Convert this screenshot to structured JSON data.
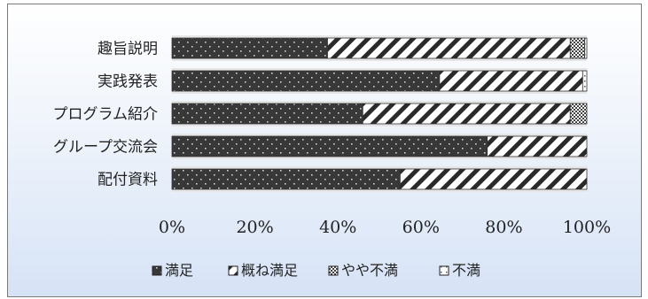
{
  "chart_data": {
    "type": "bar",
    "orientation": "horizontal",
    "stacked": "percent",
    "categories": [
      "趣旨説明",
      "実践発表",
      "プログラム紹介",
      "グループ交流会",
      "配付資料"
    ],
    "series": [
      {
        "name": "満足",
        "values": [
          37.5,
          64.5,
          46,
          76,
          55
        ],
        "pattern": "dark-dotted",
        "color": "#3c3c3c"
      },
      {
        "name": "概ね満足",
        "values": [
          58.5,
          34.5,
          50,
          24,
          45
        ],
        "pattern": "diagonal-stripes",
        "color": "#ffffff"
      },
      {
        "name": "やや不満",
        "values": [
          3.5,
          0,
          4,
          0,
          0
        ],
        "pattern": "checker",
        "color": "#9a9a9a"
      },
      {
        "name": "不満",
        "values": [
          0.5,
          1,
          0,
          0,
          0
        ],
        "pattern": "light-dotted",
        "color": "#ffffff"
      }
    ],
    "xlim": [
      0,
      100
    ],
    "xticks": [
      "0%",
      "20%",
      "40%",
      "60%",
      "80%",
      "100%"
    ],
    "grid": false,
    "legend_position": "bottom"
  }
}
